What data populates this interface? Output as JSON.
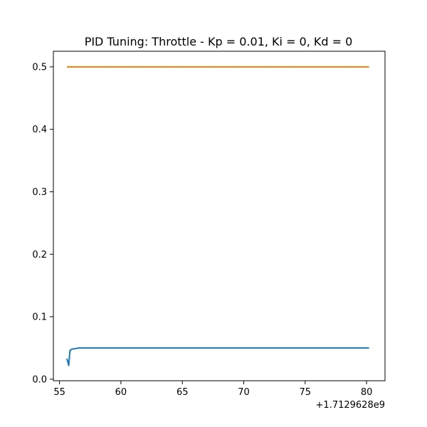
{
  "chart_data": {
    "type": "line",
    "title": "PID Tuning: Throttle - Kp = 0.01, Ki = 0, Kd = 0",
    "xlabel": "",
    "ylabel": "",
    "x_offset_label": "+1.7129628e9",
    "xlim": [
      54.5,
      81.5
    ],
    "ylim": [
      -0.0025,
      0.525
    ],
    "x_ticks": [
      55,
      60,
      65,
      70,
      75,
      80
    ],
    "x_tick_labels": [
      "55",
      "60",
      "65",
      "70",
      "75",
      "80"
    ],
    "y_ticks": [
      0.0,
      0.1,
      0.2,
      0.3,
      0.4,
      0.5
    ],
    "y_tick_labels": [
      "0.0",
      "0.1",
      "0.2",
      "0.3",
      "0.4",
      "0.5"
    ],
    "grid": false,
    "legend": "none",
    "series": [
      {
        "color": "#1f77b4",
        "x": [
          55.6,
          55.75,
          55.85,
          56.0,
          56.3,
          56.6,
          57.0,
          60,
          65,
          70,
          75,
          80.2
        ],
        "y": [
          0.033,
          0.022,
          0.046,
          0.048,
          0.049,
          0.05,
          0.05,
          0.05,
          0.05,
          0.05,
          0.05,
          0.05
        ]
      },
      {
        "color": "#ff7f0e",
        "x": [
          55.6,
          80.2
        ],
        "y": [
          0.5,
          0.5
        ]
      }
    ]
  }
}
